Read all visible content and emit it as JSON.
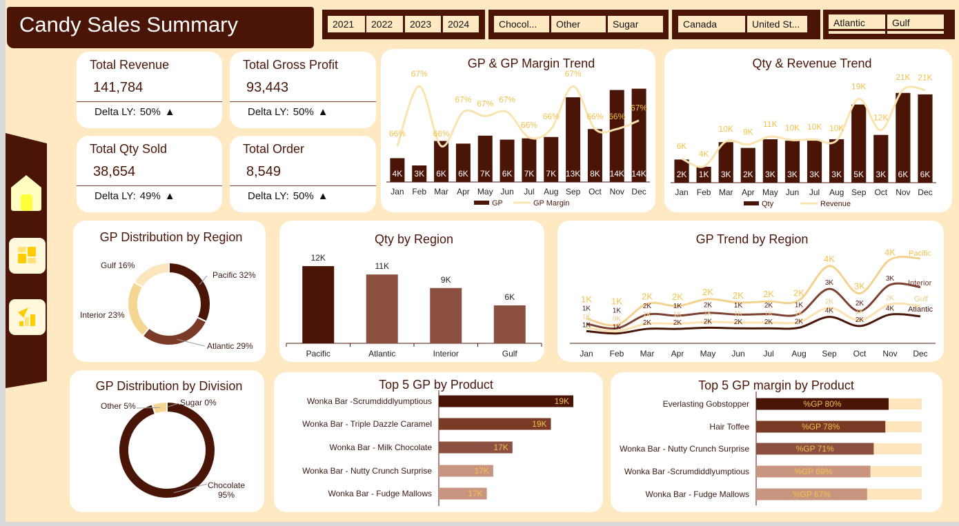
{
  "header": {
    "title": "Candy Sales Summary"
  },
  "slicers": {
    "years": [
      "2021",
      "2022",
      "2023",
      "2024"
    ],
    "divisions": [
      "Chocol...",
      "Other",
      "Sugar"
    ],
    "countries": [
      "Canada",
      "United St..."
    ],
    "regions": [
      "Atlantic",
      "Gulf"
    ]
  },
  "sidebar": {
    "items": [
      {
        "icon": "home-icon"
      },
      {
        "icon": "dashboard-icon"
      },
      {
        "icon": "chart-icon"
      }
    ]
  },
  "kpis": [
    {
      "label": "Total Revenue",
      "value": "141,784",
      "delta_label": "Delta LY:",
      "delta": "50%",
      "trend": "up"
    },
    {
      "label": "Total Gross Profit",
      "value": "93,443",
      "delta_label": "Delta LY:",
      "delta": "50%",
      "trend": "up"
    },
    {
      "label": "Total Qty Sold",
      "value": "38,654",
      "delta_label": "Delta LY:",
      "delta": "49%",
      "trend": "up"
    },
    {
      "label": "Total Order",
      "value": "8,549",
      "delta_label": "Delta LY:",
      "delta": "50%",
      "trend": "up"
    }
  ],
  "colors": {
    "brand_dark": "#4A1507",
    "background": "#FEE9C2",
    "label_gold": "#F2C14E",
    "brown": "#7B3A25",
    "mid_brown": "#8B5040",
    "light_brown": "#C99580",
    "sand": "#F5D692"
  },
  "chart_data": [
    {
      "id": "gp_margin_trend",
      "type": "bar+line",
      "title": "GP & GP Margin Trend",
      "categories": [
        "Jan",
        "Feb",
        "Mar",
        "Apr",
        "May",
        "Jun",
        "Jul",
        "Aug",
        "Sep",
        "Oct",
        "Nov",
        "Dec"
      ],
      "series": [
        {
          "name": "GP",
          "type": "bar",
          "unit": "K",
          "values": [
            3.6,
            2.5,
            6.2,
            5.8,
            7.0,
            6.4,
            6.6,
            6.8,
            12.8,
            8.0,
            13.9,
            14.1
          ]
        },
        {
          "name": "GP Margin",
          "type": "line",
          "unit": "%",
          "axis": "secondary",
          "values": [
            66.0,
            67.4,
            66.0,
            66.8,
            66.7,
            66.8,
            66.2,
            66.4,
            67.4,
            66.4,
            66.4,
            66.6
          ]
        }
      ],
      "legend": "bottom"
    },
    {
      "id": "qty_revenue_trend",
      "type": "bar+line",
      "title": "Qty & Revenue Trend",
      "categories": [
        "Jan",
        "Feb",
        "Mar",
        "Apr",
        "May",
        "Jun",
        "Jul",
        "Aug",
        "Sep",
        "Oct",
        "Nov",
        "Dec"
      ],
      "series": [
        {
          "name": "Qty",
          "type": "bar",
          "unit": "K",
          "values": [
            1.6,
            1.1,
            2.8,
            2.4,
            3.0,
            2.9,
            2.9,
            3.0,
            5.4,
            3.3,
            6.2,
            6.1
          ]
        },
        {
          "name": "Revenue",
          "type": "line",
          "unit": "K",
          "axis": "secondary",
          "values": [
            5.6,
            3.8,
            9.5,
            8.8,
            10.6,
            9.8,
            10.0,
            9.7,
            19.2,
            12.1,
            21.3,
            21.2
          ]
        }
      ],
      "legend": "bottom"
    },
    {
      "id": "gp_by_region",
      "type": "pie",
      "title": "GP Distribution by Region",
      "donut": true,
      "slices": [
        {
          "label": "Pacific",
          "value": 32,
          "color": "#4A1507"
        },
        {
          "label": "Atlantic",
          "value": 29,
          "color": "#7B3A25"
        },
        {
          "label": "Interior",
          "value": 23,
          "color": "#F5D692"
        },
        {
          "label": "Gulf",
          "value": 16,
          "color": "#FDE6BE"
        }
      ]
    },
    {
      "id": "qty_by_region",
      "type": "bar",
      "title": "Qty by Region",
      "categories": [
        "Pacific",
        "Atlantic",
        "Interior",
        "Gulf"
      ],
      "values": [
        12.0,
        10.7,
        8.6,
        5.9
      ],
      "unit": "K"
    },
    {
      "id": "gp_trend_by_region",
      "type": "line",
      "stacked": true,
      "title": "GP Trend by Region",
      "categories": [
        "Jan",
        "Feb",
        "Mar",
        "Apr",
        "May",
        "Jun",
        "Jul",
        "Aug",
        "Sep",
        "Oct",
        "Nov",
        "Dec"
      ],
      "series": [
        {
          "name": "Atlantic",
          "color": "#4A1507",
          "values": [
            1.4,
            1.0,
            1.8,
            1.8,
            2.0,
            1.9,
            1.9,
            2.0,
            3.9,
            2.3,
            4.3,
            4.0
          ]
        },
        {
          "name": "Gulf",
          "color": "#FDE2B0",
          "values": [
            0.6,
            0.4,
            0.9,
            0.9,
            1.0,
            1.0,
            1.0,
            1.0,
            1.6,
            1.0,
            1.8,
            1.8
          ]
        },
        {
          "name": "Interior",
          "color": "#7B4030",
          "values": [
            0.7,
            0.5,
            1.6,
            1.4,
            1.6,
            1.4,
            1.5,
            1.4,
            3.3,
            1.6,
            3.4,
            3.3
          ]
        },
        {
          "name": "Pacific",
          "color": "#F2D28E",
          "values": [
            0.9,
            0.6,
            1.9,
            1.7,
            2.4,
            2.1,
            2.2,
            2.4,
            4.0,
            3.1,
            4.4,
            5.0
          ]
        }
      ],
      "unit": "K",
      "legend": "right"
    },
    {
      "id": "gp_by_division",
      "type": "pie",
      "title": "GP Distribution by Division",
      "donut": true,
      "slices": [
        {
          "label": "Chocolate",
          "value": 95,
          "color": "#4A1507"
        },
        {
          "label": "Other",
          "value": 5,
          "color": "#F5D692"
        },
        {
          "label": "Sugar",
          "value": 0,
          "color": "#C99580"
        }
      ]
    },
    {
      "id": "top5_gp_product",
      "type": "bar",
      "orientation": "horizontal",
      "title": "Top 5 GP by Product",
      "categories": [
        "Wonka Bar -Scrumdiddlyumptious",
        "Wonka Bar - Triple Dazzle Caramel",
        "Wonka Bar - Milk Chocolate",
        "Wonka Bar - Nutty Crunch Surprise",
        "Wonka Bar - Fudge Mallows"
      ],
      "values": [
        19.2,
        18.5,
        17.3,
        16.7,
        16.5
      ],
      "unit": "K",
      "xlim": [
        15,
        19.2
      ],
      "colors": [
        "#4A1507",
        "#7B3A25",
        "#8B5040",
        "#C99580",
        "#C99580"
      ]
    },
    {
      "id": "top5_margin_product",
      "type": "bar",
      "orientation": "horizontal",
      "title": "Top 5 GP margin by Product",
      "categories": [
        "Everlasting Gobstopper",
        "Hair Toffee",
        "Wonka Bar - Nutty Crunch Surprise",
        "Wonka Bar -Scrumdiddlyumptious",
        "Wonka Bar - Fudge Mallows"
      ],
      "values": [
        80,
        78,
        71,
        69,
        67
      ],
      "unit": "%",
      "value_prefix": "%GP ",
      "xlim": [
        0,
        100
      ],
      "colors": [
        "#4A1507",
        "#7B3A25",
        "#8B5040",
        "#C99580",
        "#C99580"
      ]
    }
  ]
}
